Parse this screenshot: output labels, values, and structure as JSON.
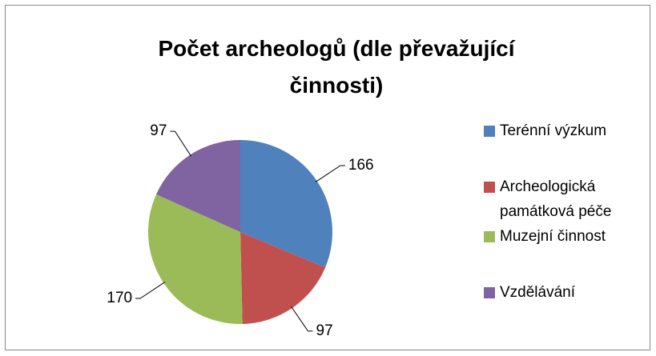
{
  "chart_data": {
    "type": "pie",
    "title": "Počet archeologů (dle převažující činnosti)",
    "categories": [
      "Terénní výzkum",
      "Archeologická památková péče",
      "Muzejní činnost",
      "Vzdělávání"
    ],
    "values": [
      166,
      97,
      170,
      97
    ],
    "colors": [
      "#4f81bd",
      "#c0504d",
      "#9bbb59",
      "#8064a2"
    ],
    "legend": "right"
  }
}
